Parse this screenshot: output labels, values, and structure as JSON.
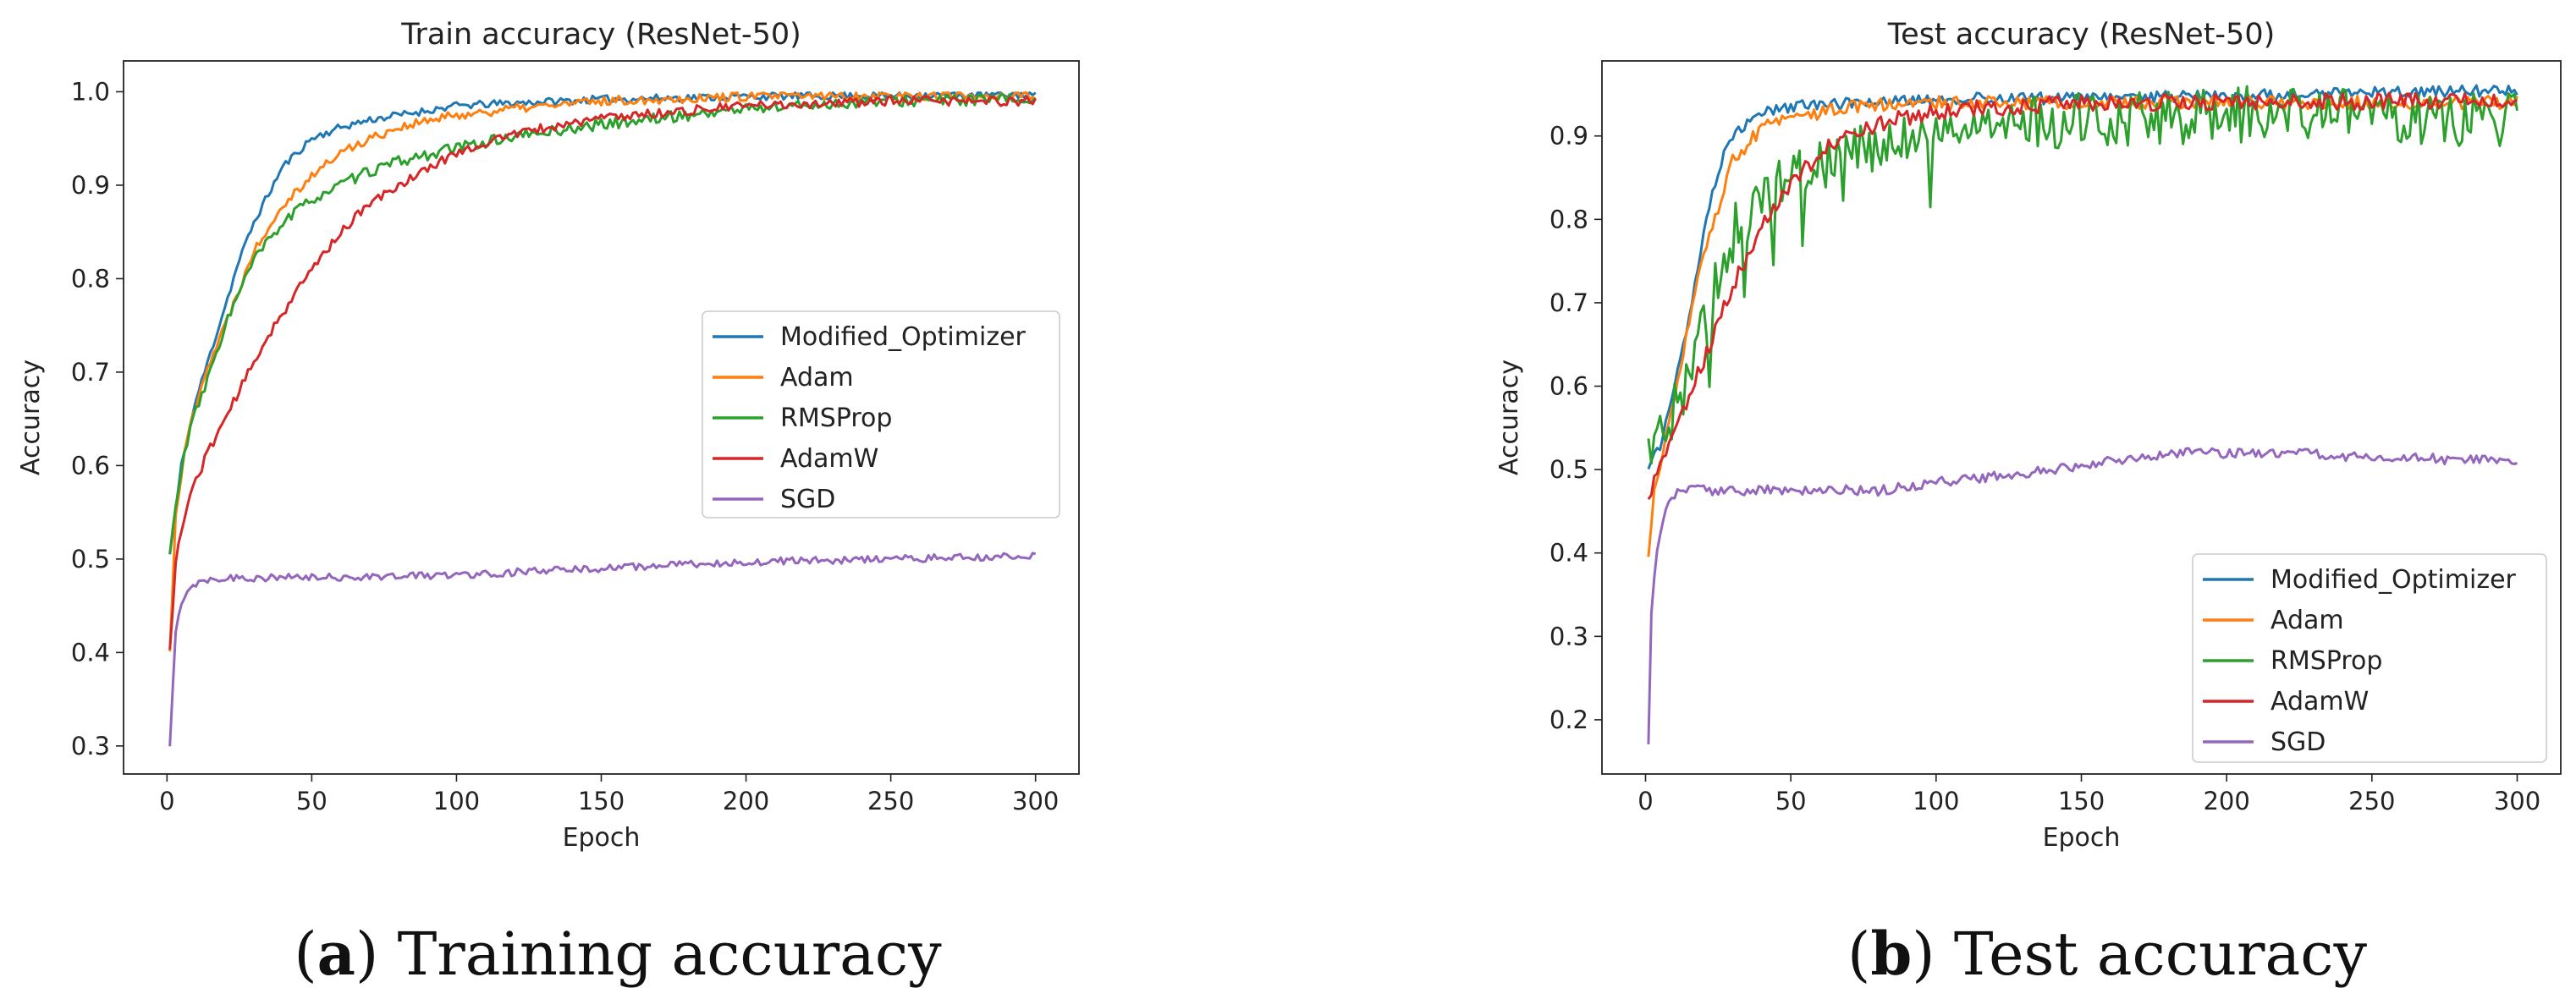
{
  "figure": {
    "captions": [
      {
        "open": "(",
        "letter": "a",
        "close": ")",
        "text": " Training accuracy"
      },
      {
        "open": "(",
        "letter": "b",
        "close": ")",
        "text": " Test accuracy"
      }
    ]
  },
  "chart_data": [
    {
      "type": "line",
      "title": "Train accuracy (ResNet-50)",
      "xlabel": "Epoch",
      "ylabel": "Accuracy",
      "xlim": [
        -15,
        315
      ],
      "ylim": [
        0.27,
        1.033
      ],
      "xticks": [
        0,
        50,
        100,
        150,
        200,
        250,
        300
      ],
      "yticks": [
        0.3,
        0.4,
        0.5,
        0.6,
        0.7,
        0.8,
        0.9,
        1.0
      ],
      "ytick_labels": [
        "0.3",
        "0.4",
        "0.5",
        "0.6",
        "0.7",
        "0.8",
        "0.9",
        "1.0"
      ],
      "legend_location": "center-right",
      "series": [
        {
          "name": "Modified_Optimizer",
          "color": "#1f77b4",
          "anchors": [
            [
              1,
              0.505
            ],
            [
              5,
              0.6
            ],
            [
              10,
              0.67
            ],
            [
              15,
              0.72
            ],
            [
              20,
              0.77
            ],
            [
              25,
              0.82
            ],
            [
              30,
              0.86
            ],
            [
              40,
              0.92
            ],
            [
              50,
              0.95
            ],
            [
              60,
              0.962
            ],
            [
              70,
              0.97
            ],
            [
              80,
              0.975
            ],
            [
              100,
              0.985
            ],
            [
              120,
              0.988
            ],
            [
              150,
              0.992
            ],
            [
              200,
              0.995
            ],
            [
              250,
              0.996
            ],
            [
              300,
              0.997
            ]
          ],
          "noise": 0.004,
          "seed": 11
        },
        {
          "name": "Adam",
          "color": "#ff7f0e",
          "anchors": [
            [
              1,
              0.4
            ],
            [
              3,
              0.55
            ],
            [
              7,
              0.63
            ],
            [
              12,
              0.69
            ],
            [
              20,
              0.75
            ],
            [
              30,
              0.83
            ],
            [
              40,
              0.88
            ],
            [
              50,
              0.91
            ],
            [
              60,
              0.935
            ],
            [
              70,
              0.95
            ],
            [
              80,
              0.962
            ],
            [
              100,
              0.975
            ],
            [
              120,
              0.982
            ],
            [
              150,
              0.99
            ],
            [
              200,
              0.995
            ],
            [
              250,
              0.996
            ],
            [
              300,
              0.996
            ]
          ],
          "noise": 0.005,
          "seed": 22
        },
        {
          "name": "RMSProp",
          "color": "#2ca02c",
          "anchors": [
            [
              1,
              0.505
            ],
            [
              4,
              0.58
            ],
            [
              8,
              0.64
            ],
            [
              15,
              0.7
            ],
            [
              20,
              0.75
            ],
            [
              30,
              0.82
            ],
            [
              40,
              0.86
            ],
            [
              50,
              0.885
            ],
            [
              60,
              0.9
            ],
            [
              70,
              0.915
            ],
            [
              80,
              0.925
            ],
            [
              100,
              0.94
            ],
            [
              120,
              0.952
            ],
            [
              150,
              0.965
            ],
            [
              180,
              0.975
            ],
            [
              200,
              0.982
            ],
            [
              250,
              0.99
            ],
            [
              300,
              0.992
            ]
          ],
          "noise": 0.006,
          "seed": 33
        },
        {
          "name": "AdamW",
          "color": "#d62728",
          "anchors": [
            [
              1,
              0.4
            ],
            [
              3,
              0.5
            ],
            [
              8,
              0.57
            ],
            [
              15,
              0.62
            ],
            [
              25,
              0.68
            ],
            [
              35,
              0.74
            ],
            [
              50,
              0.81
            ],
            [
              60,
              0.85
            ],
            [
              70,
              0.88
            ],
            [
              80,
              0.9
            ],
            [
              100,
              0.935
            ],
            [
              120,
              0.955
            ],
            [
              150,
              0.972
            ],
            [
              200,
              0.985
            ],
            [
              250,
              0.99
            ],
            [
              300,
              0.99
            ]
          ],
          "noise": 0.005,
          "seed": 44
        },
        {
          "name": "SGD",
          "color": "#9467bd",
          "anchors": [
            [
              1,
              0.3
            ],
            [
              3,
              0.42
            ],
            [
              5,
              0.455
            ],
            [
              8,
              0.47
            ],
            [
              12,
              0.478
            ],
            [
              20,
              0.48
            ],
            [
              50,
              0.48
            ],
            [
              100,
              0.483
            ],
            [
              150,
              0.49
            ],
            [
              200,
              0.497
            ],
            [
              250,
              0.5
            ],
            [
              300,
              0.503
            ]
          ],
          "noise": 0.004,
          "seed": 55
        }
      ]
    },
    {
      "type": "line",
      "title": "Test accuracy (ResNet-50)",
      "xlabel": "Epoch",
      "ylabel": "Accuracy",
      "xlim": [
        -15,
        315
      ],
      "ylim": [
        0.135,
        0.99
      ],
      "xticks": [
        0,
        50,
        100,
        150,
        200,
        250,
        300
      ],
      "yticks": [
        0.2,
        0.3,
        0.4,
        0.5,
        0.6,
        0.7,
        0.8,
        0.9
      ],
      "ytick_labels": [
        "0.2",
        "0.3",
        "0.4",
        "0.5",
        "0.6",
        "0.7",
        "0.8",
        "0.9"
      ],
      "legend_location": "lower-right",
      "series": [
        {
          "name": "Modified_Optimizer",
          "color": "#1f77b4",
          "anchors": [
            [
              1,
              0.5
            ],
            [
              5,
              0.53
            ],
            [
              10,
              0.6
            ],
            [
              15,
              0.68
            ],
            [
              20,
              0.78
            ],
            [
              25,
              0.86
            ],
            [
              30,
              0.9
            ],
            [
              40,
              0.93
            ],
            [
              50,
              0.935
            ],
            [
              100,
              0.945
            ],
            [
              150,
              0.945
            ],
            [
              200,
              0.948
            ],
            [
              250,
              0.952
            ],
            [
              300,
              0.955
            ]
          ],
          "noise": 0.007,
          "seed": 61
        },
        {
          "name": "Adam",
          "color": "#ff7f0e",
          "anchors": [
            [
              1,
              0.4
            ],
            [
              3,
              0.48
            ],
            [
              8,
              0.55
            ],
            [
              15,
              0.68
            ],
            [
              20,
              0.76
            ],
            [
              30,
              0.87
            ],
            [
              40,
              0.91
            ],
            [
              50,
              0.92
            ],
            [
              70,
              0.935
            ],
            [
              100,
              0.94
            ],
            [
              150,
              0.94
            ],
            [
              200,
              0.94
            ],
            [
              250,
              0.94
            ],
            [
              300,
              0.94
            ]
          ],
          "noise": 0.008,
          "seed": 72
        },
        {
          "name": "RMSProp",
          "color": "#2ca02c",
          "anchors": [
            [
              1,
              0.52
            ],
            [
              5,
              0.55
            ],
            [
              10,
              0.57
            ],
            [
              15,
              0.62
            ],
            [
              20,
              0.68
            ],
            [
              30,
              0.78
            ],
            [
              40,
              0.82
            ],
            [
              50,
              0.85
            ],
            [
              60,
              0.87
            ],
            [
              80,
              0.89
            ],
            [
              100,
              0.91
            ],
            [
              120,
              0.915
            ],
            [
              150,
              0.92
            ],
            [
              200,
              0.925
            ],
            [
              250,
              0.922
            ],
            [
              300,
              0.92
            ]
          ],
          "noise": 0.035,
          "seed": 83
        },
        {
          "name": "AdamW",
          "color": "#d62728",
          "anchors": [
            [
              1,
              0.47
            ],
            [
              5,
              0.5
            ],
            [
              10,
              0.55
            ],
            [
              20,
              0.63
            ],
            [
              30,
              0.72
            ],
            [
              40,
              0.79
            ],
            [
              50,
              0.84
            ],
            [
              60,
              0.88
            ],
            [
              70,
              0.9
            ],
            [
              80,
              0.915
            ],
            [
              100,
              0.93
            ],
            [
              150,
              0.94
            ],
            [
              200,
              0.94
            ],
            [
              250,
              0.942
            ],
            [
              300,
              0.942
            ]
          ],
          "noise": 0.01,
          "seed": 94
        },
        {
          "name": "SGD",
          "color": "#9467bd",
          "anchors": [
            [
              1,
              0.175
            ],
            [
              2,
              0.33
            ],
            [
              4,
              0.4
            ],
            [
              6,
              0.44
            ],
            [
              9,
              0.465
            ],
            [
              12,
              0.475
            ],
            [
              50,
              0.475
            ],
            [
              80,
              0.475
            ],
            [
              100,
              0.485
            ],
            [
              130,
              0.495
            ],
            [
              160,
              0.51
            ],
            [
              180,
              0.52
            ],
            [
              200,
              0.52
            ],
            [
              220,
              0.52
            ],
            [
              250,
              0.515
            ],
            [
              300,
              0.51
            ]
          ],
          "noise": 0.006,
          "seed": 105
        }
      ]
    }
  ]
}
